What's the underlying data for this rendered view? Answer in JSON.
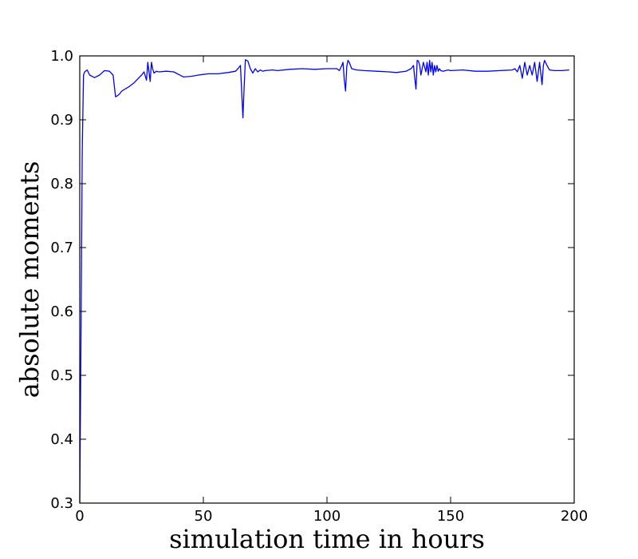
{
  "chart_data": {
    "type": "line",
    "title": "",
    "xlabel": "simulation time in hours",
    "ylabel": "absolute moments",
    "xlim": [
      0,
      200
    ],
    "ylim": [
      0.3,
      1.0
    ],
    "grid": false,
    "x_ticks": [
      0,
      50,
      100,
      150,
      200
    ],
    "y_ticks": [
      0.3,
      0.4,
      0.5,
      0.6,
      0.7,
      0.8,
      0.9,
      1.0
    ],
    "x_tick_labels": [
      "0",
      "50",
      "100",
      "150",
      "200"
    ],
    "y_tick_labels": [
      "0.3",
      "0.4",
      "0.5",
      "0.6",
      "0.7",
      "0.8",
      "0.9",
      "1.0"
    ],
    "series": [
      {
        "color": "#0000ff",
        "x": [
          0,
          0.5,
          1.0,
          1.5,
          2.0,
          3.0,
          4.0,
          6.0,
          8.0,
          10.0,
          12.0,
          13.5,
          14.5,
          15.0,
          16.0,
          17.0,
          20.0,
          22.0,
          24.0,
          25.0,
          26.0,
          27.0,
          27.5,
          28.0,
          28.5,
          29.0,
          29.5,
          30.0,
          31.0,
          32.0,
          35.0,
          38.0,
          40.0,
          42.0,
          45.0,
          48.0,
          52.0,
          56.0,
          60.0,
          63.0,
          64.0,
          65.0,
          66.0,
          66.5,
          67.0,
          68.0,
          69.0,
          70.0,
          71.0,
          72.0,
          73.0,
          74.0,
          75.0,
          78.0,
          80.0,
          85.0,
          90.0,
          95.0,
          100.0,
          104.0,
          105.0,
          106.0,
          106.5,
          107.0,
          107.5,
          108.0,
          108.5,
          109.0,
          110.0,
          112.0,
          115.0,
          120.0,
          125.0,
          128.0,
          132.0,
          134.0,
          135.0,
          135.5,
          136.0,
          136.5,
          137.0,
          137.5,
          138.0,
          139.0,
          140.0,
          140.5,
          141.0,
          141.5,
          142.0,
          142.5,
          143.0,
          143.5,
          144.0,
          144.5,
          145.0,
          145.5,
          146.0,
          147.0,
          148.0,
          149.0,
          150.0,
          155.0,
          160.0,
          165.0,
          170.0,
          175.0,
          176.0,
          177.0,
          178.0,
          179.0,
          180.0,
          181.0,
          182.0,
          183.0,
          184.0,
          185.0,
          186.0,
          187.0,
          187.5,
          188.0,
          189.0,
          190.0,
          192.0,
          195.0,
          198.0
        ],
        "y": [
          0.3,
          0.55,
          0.85,
          0.97,
          0.975,
          0.978,
          0.97,
          0.966,
          0.97,
          0.977,
          0.976,
          0.97,
          0.936,
          0.937,
          0.94,
          0.945,
          0.952,
          0.958,
          0.966,
          0.97,
          0.975,
          0.962,
          0.99,
          0.975,
          0.96,
          0.99,
          0.98,
          0.973,
          0.976,
          0.975,
          0.976,
          0.975,
          0.971,
          0.967,
          0.968,
          0.97,
          0.972,
          0.972,
          0.974,
          0.976,
          0.98,
          0.985,
          0.903,
          0.95,
          0.994,
          0.992,
          0.98,
          0.973,
          0.98,
          0.975,
          0.978,
          0.976,
          0.977,
          0.978,
          0.977,
          0.979,
          0.98,
          0.979,
          0.98,
          0.98,
          0.977,
          0.985,
          0.99,
          0.963,
          0.945,
          0.983,
          0.993,
          0.99,
          0.98,
          0.978,
          0.977,
          0.976,
          0.975,
          0.974,
          0.976,
          0.98,
          0.985,
          0.966,
          0.948,
          0.993,
          0.992,
          0.985,
          0.97,
          0.99,
          0.975,
          0.99,
          0.97,
          0.993,
          0.975,
          0.99,
          0.97,
          0.985,
          0.975,
          0.985,
          0.976,
          0.98,
          0.977,
          0.976,
          0.977,
          0.978,
          0.977,
          0.978,
          0.976,
          0.976,
          0.977,
          0.978,
          0.98,
          0.975,
          0.985,
          0.965,
          0.99,
          0.97,
          0.985,
          0.97,
          0.99,
          0.96,
          0.99,
          0.955,
          0.985,
          0.993,
          0.985,
          0.978,
          0.977,
          0.977,
          0.978
        ]
      }
    ]
  }
}
